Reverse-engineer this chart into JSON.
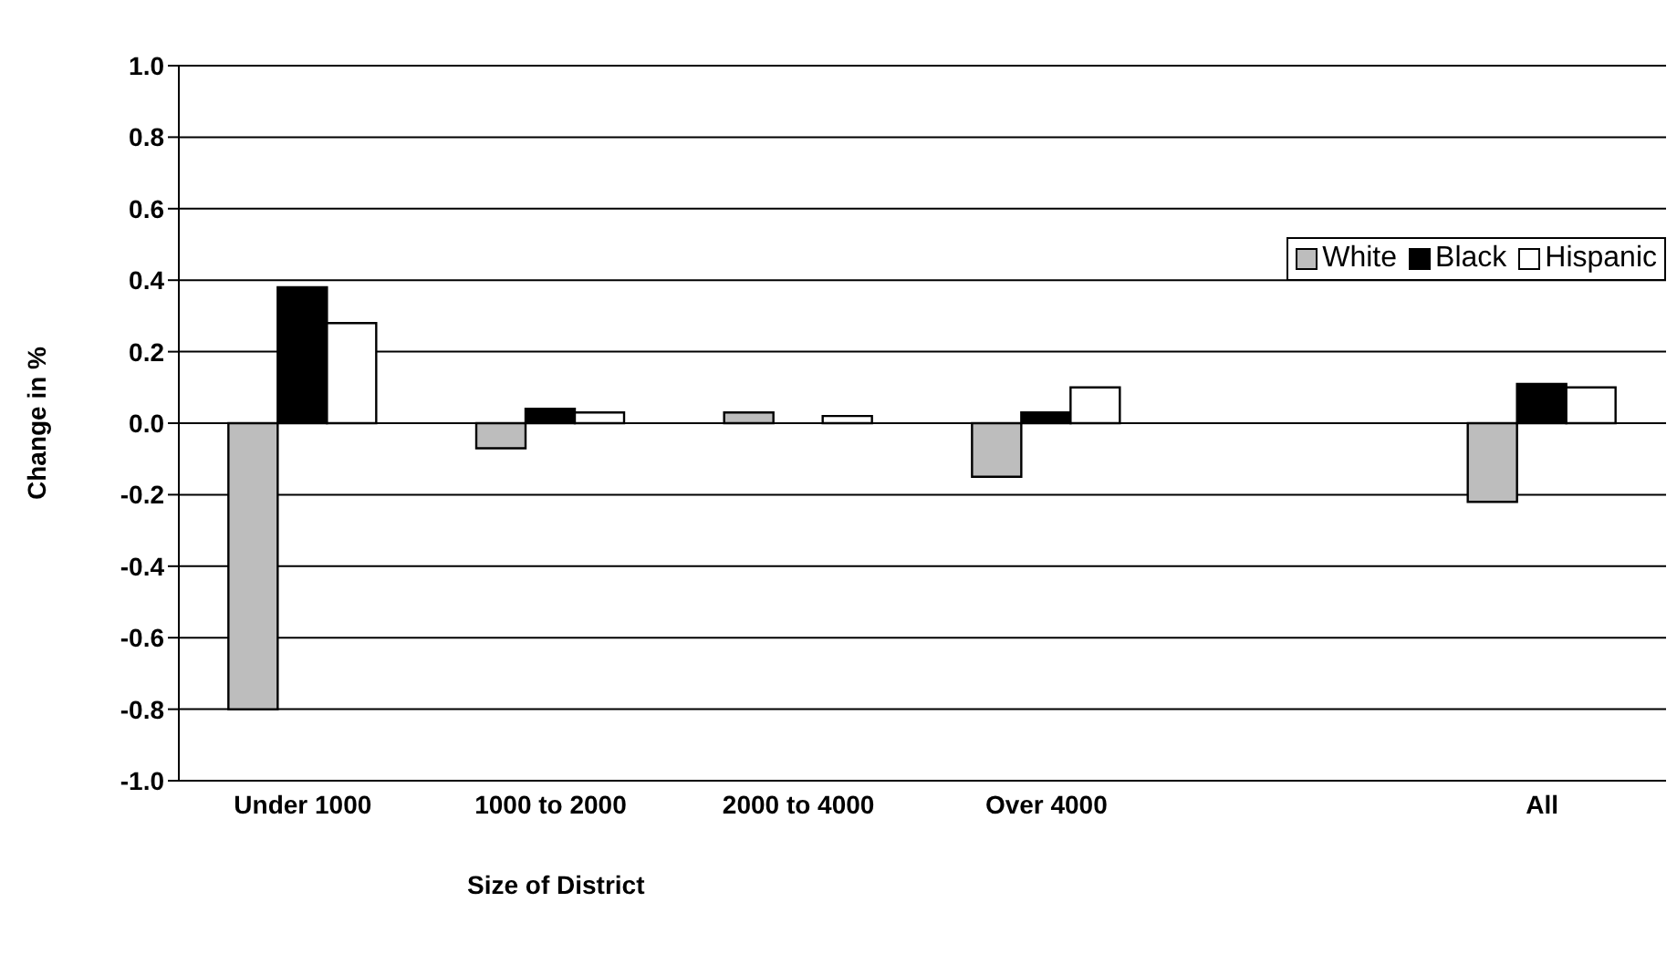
{
  "chart_data": {
    "type": "bar",
    "xlabel": "Size of District",
    "ylabel": "Change in %",
    "categories": [
      "Under 1000",
      "1000 to 2000",
      "2000 to 4000",
      "Over 4000",
      null,
      "All"
    ],
    "series": [
      {
        "name": "White",
        "color": "#bdbdbd",
        "values": [
          -0.8,
          -0.07,
          0.03,
          -0.15,
          null,
          -0.22
        ]
      },
      {
        "name": "Black",
        "color": "#000000",
        "values": [
          0.38,
          0.04,
          0.0,
          0.03,
          null,
          0.11
        ]
      },
      {
        "name": "Hispanic",
        "color": "#ffffff",
        "values": [
          0.28,
          0.03,
          0.02,
          0.1,
          null,
          0.1
        ]
      }
    ],
    "ylim": [
      -1.0,
      1.0
    ],
    "yticks": [
      {
        "value": -1,
        "label": "-1.0"
      },
      -0.8,
      -0.6,
      -0.4,
      -0.2,
      {
        "value": 0,
        "label": "0.0"
      },
      0.2,
      0.4,
      0.6,
      0.8,
      {
        "value": 1,
        "label": "1.0"
      }
    ],
    "grid": "y",
    "legend": "top right"
  }
}
